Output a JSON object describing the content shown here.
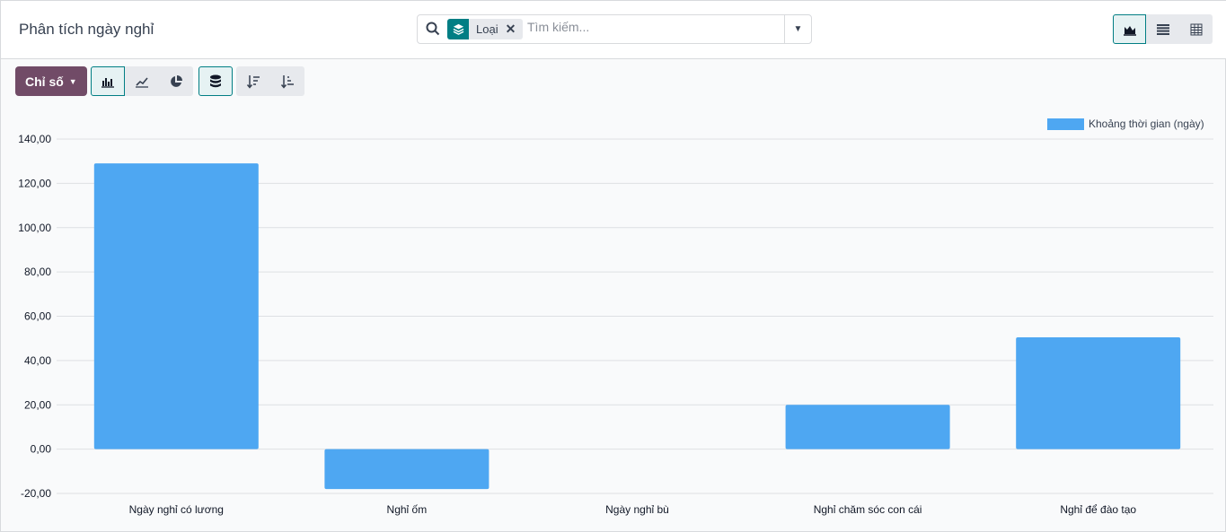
{
  "header": {
    "title": "Phân tích ngày nghỉ"
  },
  "search": {
    "facet_label": "Loại",
    "facet_icon": "layers-icon",
    "placeholder": "Tìm kiếm..."
  },
  "views": [
    {
      "name": "graph",
      "icon": "area-chart-icon",
      "active": true
    },
    {
      "name": "list",
      "icon": "list-icon"
    },
    {
      "name": "pivot",
      "icon": "table-icon"
    }
  ],
  "toolbar": {
    "measure_label": "Chỉ số",
    "chart_types": [
      "bar",
      "line",
      "pie"
    ],
    "active_chart": "bar",
    "stacked": true,
    "sort": [
      "descending",
      "ascending"
    ]
  },
  "colors": {
    "bar": "#4ea7f2",
    "accent": "#017e84",
    "primary": "#714b67"
  },
  "chart_data": {
    "type": "bar",
    "categories": [
      "Ngày nghỉ có lương",
      "Nghỉ ốm",
      "Ngày nghỉ bù",
      "Nghỉ chăm sóc con cái",
      "Nghỉ để đào tạo"
    ],
    "series": [
      {
        "name": "Khoảng thời gian (ngày)",
        "values": [
          129,
          -18,
          0,
          20,
          50.5
        ]
      }
    ],
    "ylim": [
      -20,
      140
    ],
    "yticks": [
      "-20,00",
      "0,00",
      "20,00",
      "40,00",
      "60,00",
      "80,00",
      "100,00",
      "120,00",
      "140,00"
    ],
    "grid": true,
    "legend": "top-right"
  }
}
